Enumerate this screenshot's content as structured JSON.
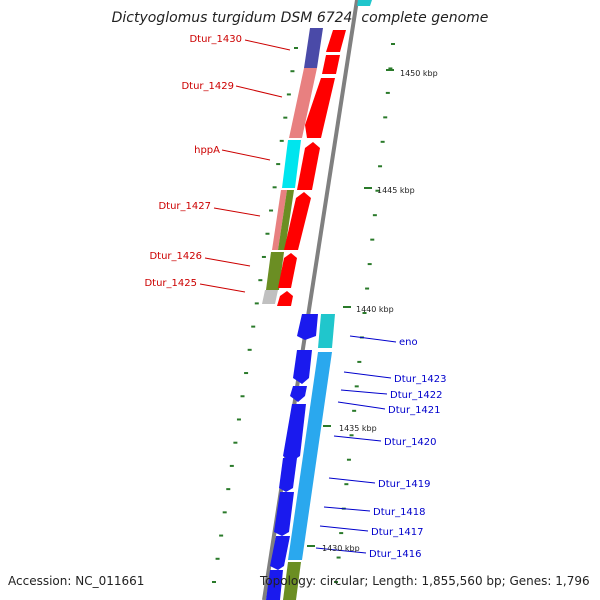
{
  "title": "Dictyoglomus turgidum DSM 6724, complete genome",
  "footer": {
    "accession": "Accession: NC_011661",
    "summary": "Topology: circular; Length: 1,855,560 bp; Genes: 1,796"
  },
  "colors": {
    "forward_label": "#cc0000",
    "reverse_label": "#0000cc",
    "backbone": "#808080",
    "tick": "#2a7a2a",
    "forward_cds": "#ff0000",
    "reverse_cds": "#1a1aee"
  },
  "scale_labels": [
    "1450 kbp",
    "1445 kbp",
    "1440 kbp",
    "1435 kbp",
    "1430 kbp"
  ],
  "forward_genes": [
    "Dtur_1430",
    "Dtur_1429",
    "hppA",
    "Dtur_1427",
    "Dtur_1426",
    "Dtur_1425"
  ],
  "reverse_genes": [
    "eno",
    "Dtur_1423",
    "Dtur_1422",
    "Dtur_1421",
    "Dtur_1420",
    "Dtur_1419",
    "Dtur_1418",
    "Dtur_1417",
    "Dtur_1416"
  ]
}
